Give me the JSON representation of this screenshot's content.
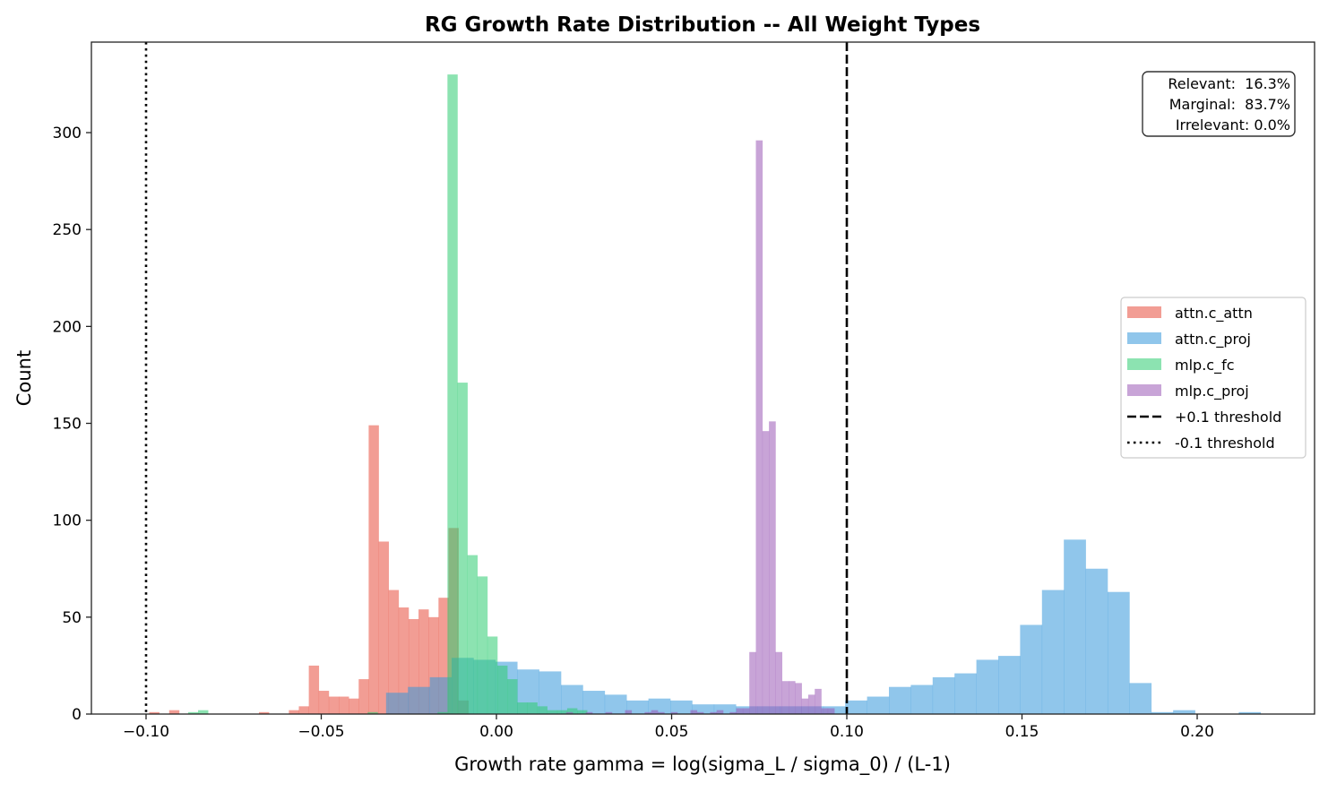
{
  "chart_data": {
    "type": "histogram",
    "title": "RG Growth Rate Distribution -- All Weight Types",
    "xlabel": "Growth rate gamma = log(sigma_L / sigma_0) / (L-1)",
    "ylabel": "Count",
    "xlim": [
      -0.1156,
      0.2335
    ],
    "ylim": [
      0,
      346.7
    ],
    "xticks": [
      -0.1,
      -0.05,
      0.0,
      0.05,
      0.1,
      0.15,
      0.2
    ],
    "xtick_labels": [
      "−0.10",
      "−0.05",
      "0.00",
      "0.05",
      "0.10",
      "0.15",
      "0.20"
    ],
    "yticks": [
      0,
      50,
      100,
      150,
      200,
      250,
      300
    ],
    "ytick_labels": [
      "0",
      "50",
      "100",
      "150",
      "200",
      "250",
      "300"
    ],
    "grid": false,
    "legend_position": "center-right",
    "series": [
      {
        "name": "attn.c_attn",
        "color": "#e74c3c",
        "alpha": 0.55,
        "bin_start": -0.0991,
        "bin_width": 0.002847,
        "counts": [
          1,
          0,
          2,
          0,
          0,
          0,
          0,
          0,
          0,
          0,
          0,
          1,
          0,
          0,
          2,
          4,
          25,
          12,
          9,
          9,
          8,
          18,
          149,
          89,
          64,
          55,
          49,
          54,
          50,
          60,
          96,
          7
        ]
      },
      {
        "name": "attn.c_proj",
        "color": "#3498db",
        "alpha": 0.55,
        "bin_start": -0.0315,
        "bin_width": 0.00624,
        "counts": [
          11,
          14,
          19,
          29,
          28,
          27,
          23,
          22,
          15,
          12,
          10,
          7,
          8,
          7,
          5,
          5,
          4,
          4,
          4,
          4,
          4,
          7,
          9,
          14,
          15,
          19,
          21,
          28,
          30,
          46,
          64,
          90,
          75,
          63,
          16,
          1,
          2,
          0,
          0,
          1
        ]
      },
      {
        "name": "mlp.c_fc",
        "color": "#2ecc71",
        "alpha": 0.55,
        "bin_start": -0.088,
        "bin_width": 0.002847,
        "counts": [
          1,
          2,
          0,
          0,
          0,
          0,
          0,
          0,
          0,
          0,
          0,
          0,
          0,
          0,
          0,
          0,
          0,
          0,
          1,
          0,
          0,
          0,
          0,
          0,
          0,
          1,
          330,
          171,
          82,
          71,
          40,
          25,
          18,
          6,
          6,
          4,
          2,
          2,
          3,
          2
        ]
      },
      {
        "name": "mlp.c_proj",
        "color": "#9b59b6",
        "alpha": 0.55,
        "bin_start": 0.0199,
        "bin_width": 0.001867,
        "counts": [
          1,
          0,
          0,
          1,
          0,
          0,
          1,
          0,
          0,
          2,
          0,
          0,
          1,
          2,
          1,
          0,
          1,
          0,
          0,
          2,
          1,
          0,
          1,
          2,
          0,
          1,
          3,
          3,
          32,
          296,
          146,
          151,
          32,
          17,
          17,
          16,
          8,
          10,
          13,
          3,
          3
        ]
      }
    ],
    "threshold_lines": [
      {
        "name": "+0.1 threshold",
        "x": 0.1,
        "style": "dashed",
        "color": "#000000"
      },
      {
        "name": "-0.1 threshold",
        "x": -0.1,
        "style": "dotted",
        "color": "#000000"
      }
    ],
    "annotation": {
      "lines": [
        "Relevant:  16.3%",
        "Marginal:  83.7%",
        "Irrelevant: 0.0%"
      ],
      "position": "top-right"
    }
  }
}
